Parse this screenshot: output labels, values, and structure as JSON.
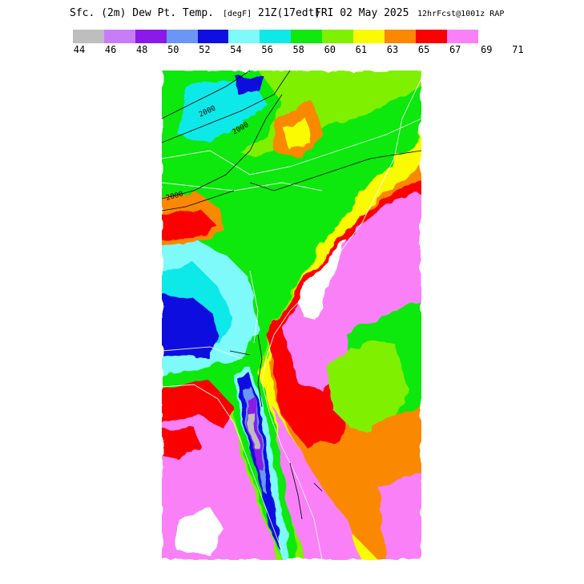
{
  "title": {
    "field": "Sfc. (2m) Dew Pt. Temp.",
    "units": "[degF]",
    "valid": "21Z(17edt)",
    "date": "FRI 02 May 2025",
    "run": "12hrFcst@1001z RAP"
  },
  "legend": {
    "colors": [
      "#bebebe",
      "#c87df8",
      "#8a1ae8",
      "#6b96f6",
      "#0f10e0",
      "#7ffafa",
      "#10e8e8",
      "#10e810",
      "#7ff000",
      "#fafa00",
      "#fa8800",
      "#fa0000",
      "#fa80f8"
    ],
    "ticks": [
      "44",
      "46",
      "48",
      "50",
      "52",
      "54",
      "56",
      "58",
      "60",
      "61",
      "63",
      "65",
      "67",
      "69",
      "71"
    ]
  },
  "map": {
    "contour_labels": [
      "2000",
      "2000",
      "2000"
    ]
  }
}
